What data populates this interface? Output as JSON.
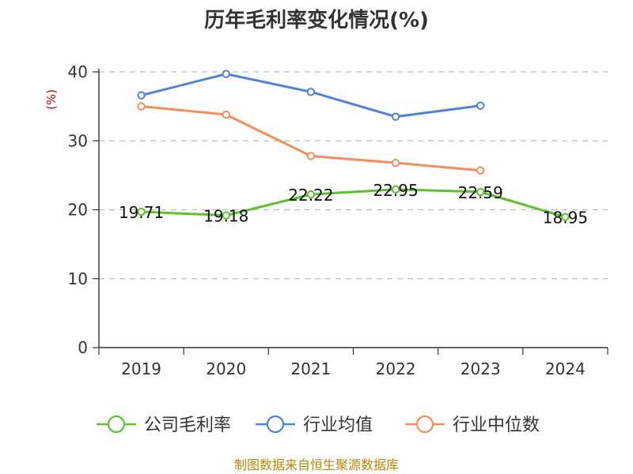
{
  "chart_data": {
    "type": "line",
    "title": "历年毛利率变化情况(%)",
    "ylabel": "(%)",
    "categories": [
      "2019",
      "2020",
      "2021",
      "2022",
      "2023",
      "2024"
    ],
    "ylim": [
      0,
      40
    ],
    "yticks": [
      0,
      10,
      20,
      30,
      40
    ],
    "grid": true,
    "legend_position": "bottom",
    "series": [
      {
        "name": "公司毛利率",
        "color": "#5cc12c",
        "values": [
          19.71,
          19.18,
          22.22,
          22.95,
          22.59,
          18.95
        ],
        "labels": [
          "19.71",
          "19.18",
          "22.22",
          "22.95",
          "22.59",
          "18.95"
        ]
      },
      {
        "name": "行业均值",
        "color": "#4f82d9",
        "values": [
          36.6,
          39.7,
          37.1,
          33.5,
          35.1,
          null
        ]
      },
      {
        "name": "行业中位数",
        "color": "#f38d5b",
        "values": [
          35.0,
          33.8,
          27.8,
          26.8,
          25.7,
          null
        ]
      }
    ],
    "source": "制图数据来自恒生聚源数据库"
  }
}
